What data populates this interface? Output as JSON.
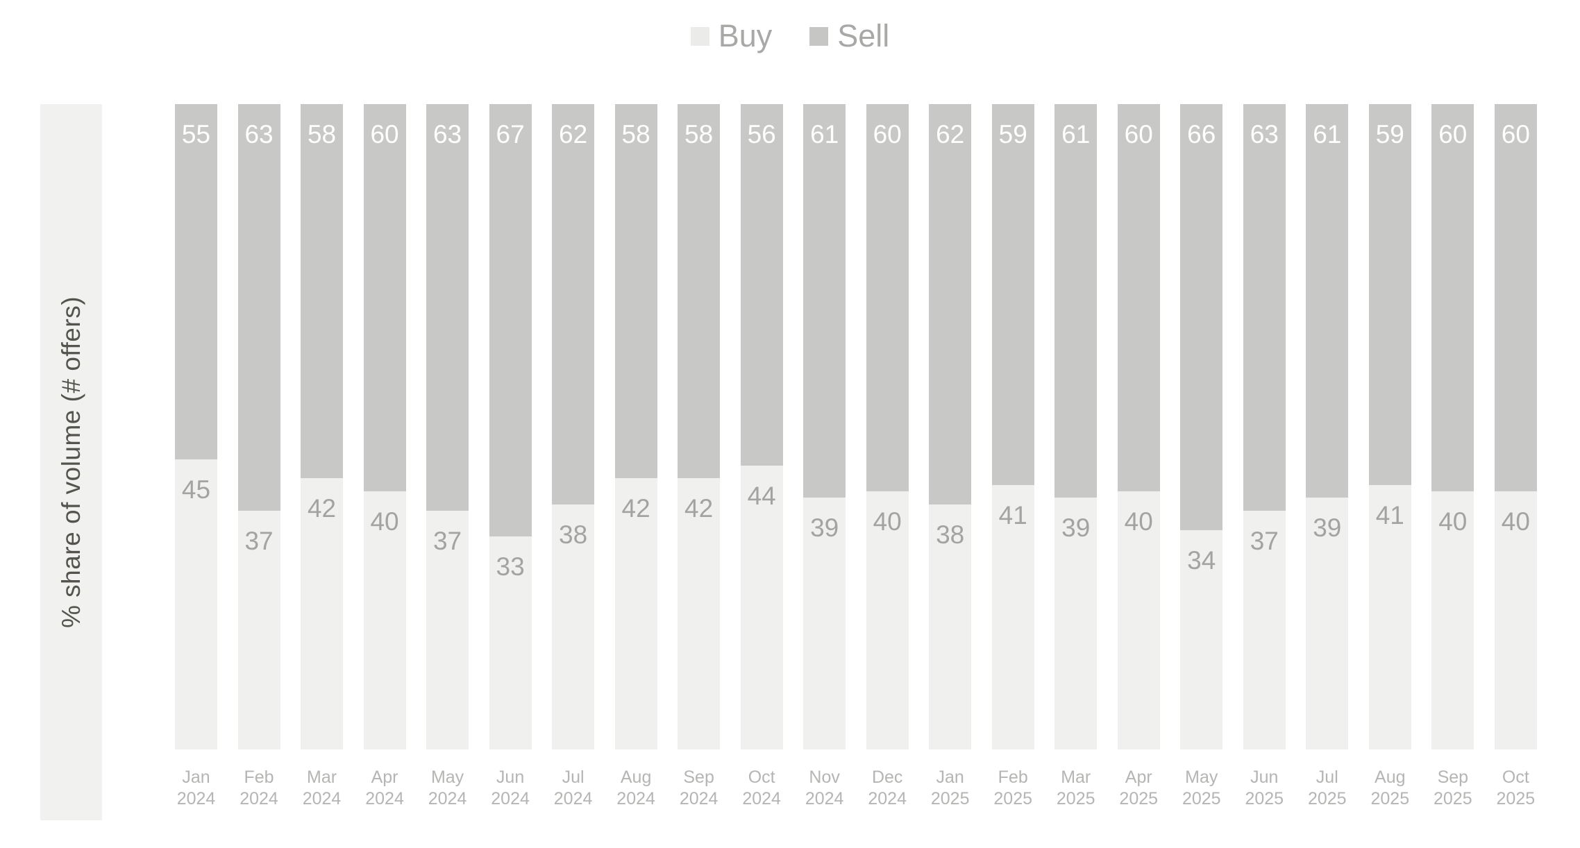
{
  "chart_data": {
    "type": "bar",
    "stacked": true,
    "orientation": "vertical",
    "ylabel": "% share of volume (# offers)",
    "ylim": [
      0,
      100
    ],
    "grid": false,
    "legend_position": "top-center",
    "background_color": "#ffffff",
    "axis_band_color": "#f1f1f0",
    "ylabel_color": "#54534e",
    "xtick_color": "#b5b5b3",
    "legend_text_color": "#a8a8a7",
    "categories": [
      {
        "month": "Jan",
        "year": "2024"
      },
      {
        "month": "Feb",
        "year": "2024"
      },
      {
        "month": "Mar",
        "year": "2024"
      },
      {
        "month": "Apr",
        "year": "2024"
      },
      {
        "month": "May",
        "year": "2024"
      },
      {
        "month": "Jun",
        "year": "2024"
      },
      {
        "month": "Jul",
        "year": "2024"
      },
      {
        "month": "Aug",
        "year": "2024"
      },
      {
        "month": "Sep",
        "year": "2024"
      },
      {
        "month": "Oct",
        "year": "2024"
      },
      {
        "month": "Nov",
        "year": "2024"
      },
      {
        "month": "Dec",
        "year": "2024"
      },
      {
        "month": "Jan",
        "year": "2025"
      },
      {
        "month": "Feb",
        "year": "2025"
      },
      {
        "month": "Mar",
        "year": "2025"
      },
      {
        "month": "Apr",
        "year": "2025"
      },
      {
        "month": "May",
        "year": "2025"
      },
      {
        "month": "Jun",
        "year": "2025"
      },
      {
        "month": "Jul",
        "year": "2025"
      },
      {
        "month": "Aug",
        "year": "2025"
      },
      {
        "month": "Sep",
        "year": "2025"
      },
      {
        "month": "Oct",
        "year": "2025"
      }
    ],
    "series": [
      {
        "name": "Buy",
        "color": "#f0f0ee",
        "swatch_color": "#ebebea",
        "label_color": "#a3a3a2",
        "values": [
          45,
          37,
          42,
          40,
          37,
          33,
          38,
          42,
          42,
          44,
          39,
          40,
          38,
          41,
          39,
          40,
          34,
          37,
          39,
          41,
          40,
          40
        ]
      },
      {
        "name": "Sell",
        "color": "#c8c8c7",
        "swatch_color": "#c6c6c5",
        "label_color": "#ffffff",
        "values": [
          55,
          63,
          58,
          60,
          63,
          67,
          62,
          58,
          58,
          56,
          61,
          60,
          62,
          59,
          61,
          60,
          66,
          63,
          61,
          59,
          60,
          60
        ]
      }
    ]
  }
}
